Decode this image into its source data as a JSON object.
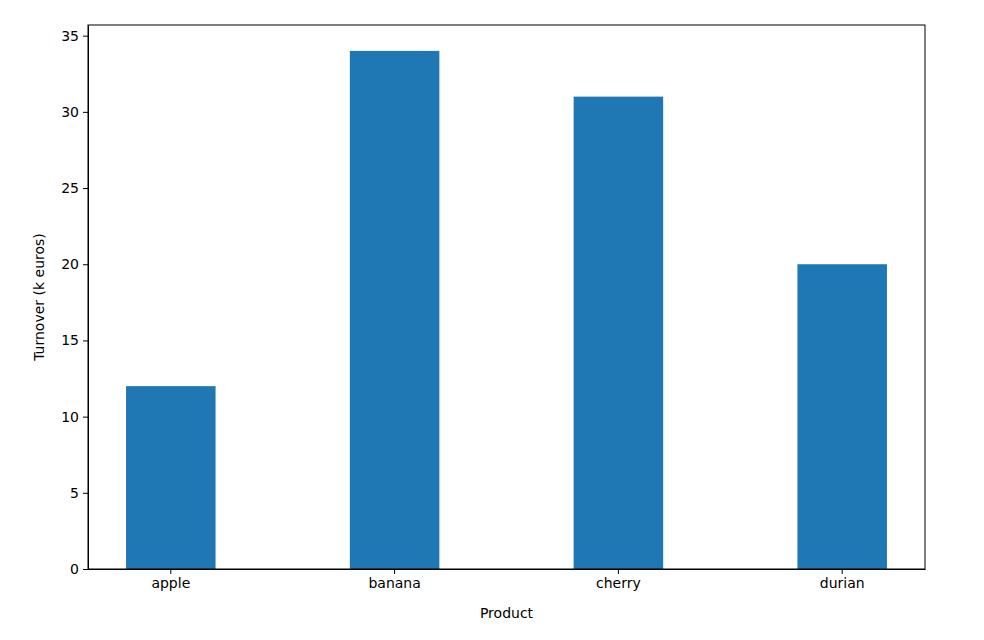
{
  "chart_data": {
    "type": "bar",
    "x_label": "Product",
    "y_label": "Turnover (k euros)",
    "categories": [
      "apple",
      "banana",
      "cherry",
      "durian"
    ],
    "values": [
      12,
      34,
      31,
      20
    ],
    "color": "#1f77b4",
    "ylim": [
      0,
      35.7
    ],
    "yticks": [
      0,
      5,
      10,
      15,
      20,
      25,
      30,
      35
    ],
    "grid": false
  }
}
